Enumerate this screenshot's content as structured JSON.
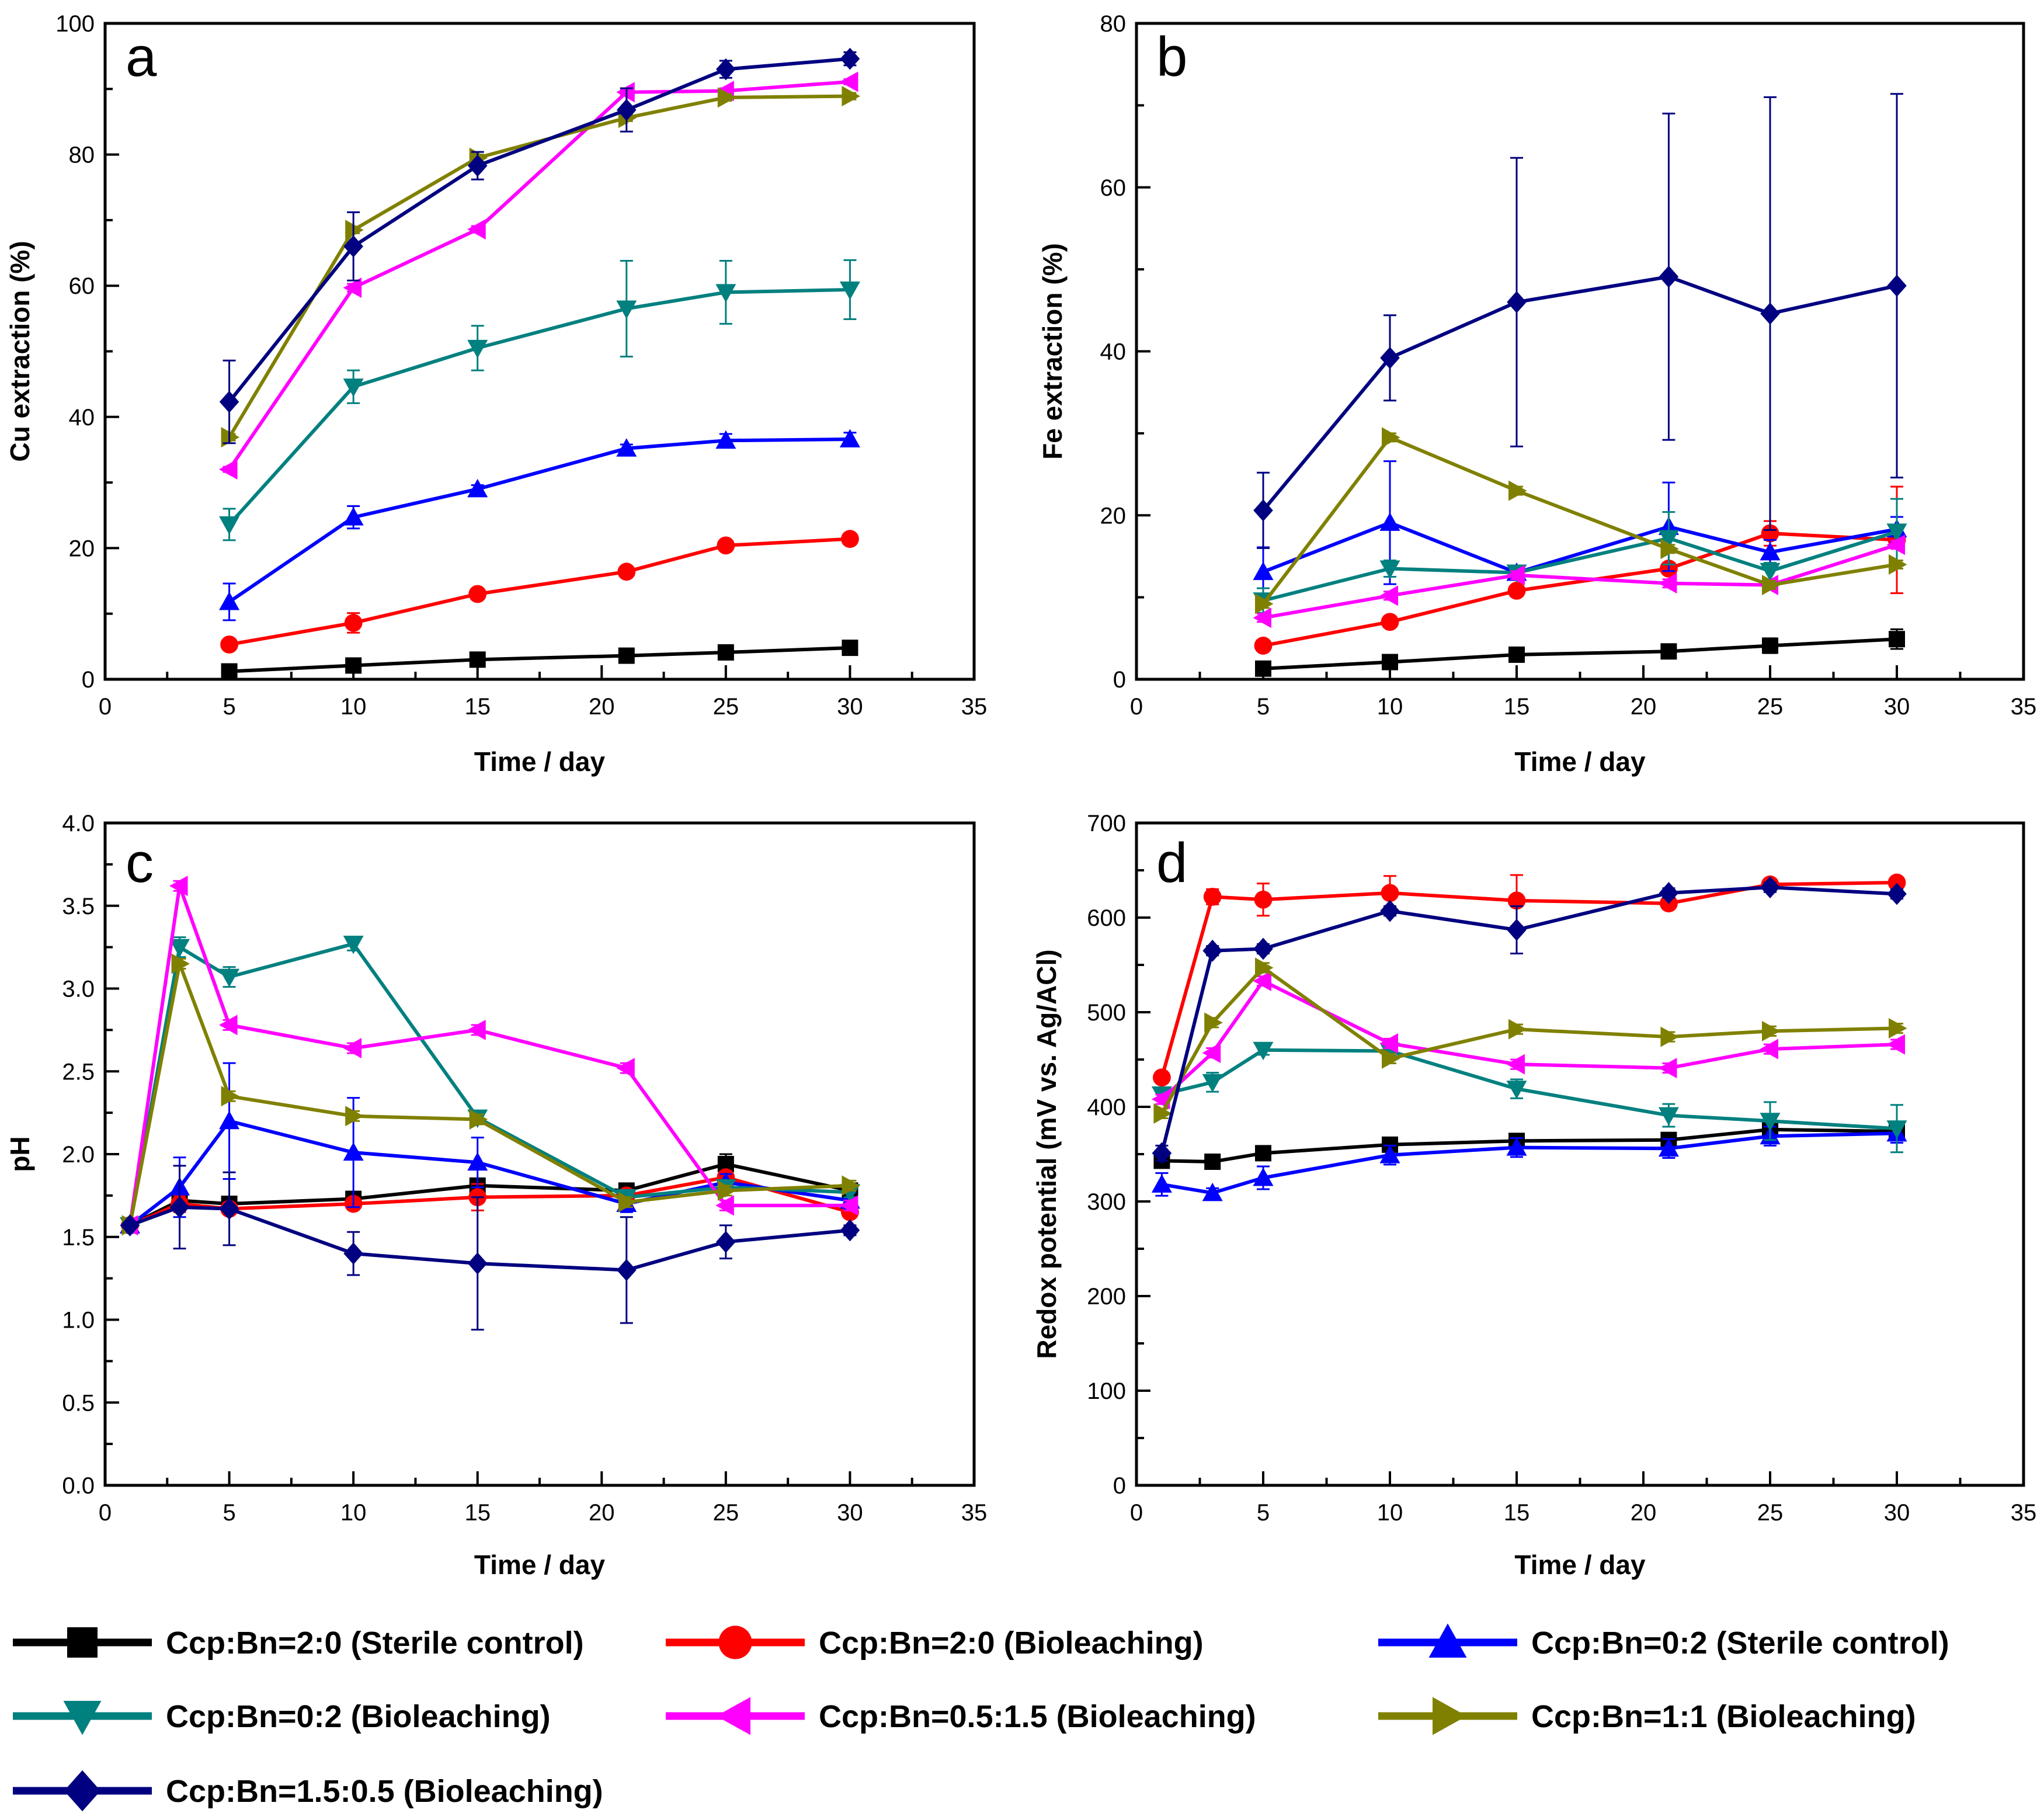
{
  "figure": {
    "legend": {
      "entries": [
        {
          "label": "Ccp:Bn=2:0 (Sterile control)",
          "color": "#000000",
          "marker": "square"
        },
        {
          "label": "Ccp:Bn=2:0 (Bioleaching)",
          "color": "#ff0000",
          "marker": "circle"
        },
        {
          "label": "Ccp:Bn=0:2 (Sterile control)",
          "color": "#0000ff",
          "marker": "triangle-up"
        },
        {
          "label": "Ccp:Bn=0:2 (Bioleaching)",
          "color": "#00807f",
          "marker": "triangle-down"
        },
        {
          "label": "Ccp:Bn=0.5:1.5 (Bioleaching)",
          "color": "#ff00ff",
          "marker": "triangle-left"
        },
        {
          "label": "Ccp:Bn=1:1 (Bioleaching)",
          "color": "#808000",
          "marker": "triangle-right"
        },
        {
          "label": "Ccp:Bn=1.5:0.5 (Bioleaching)",
          "color": "#000080",
          "marker": "diamond"
        }
      ]
    }
  },
  "chart_data": [
    {
      "panel": "a",
      "type": "line",
      "xlabel": "Time / day",
      "ylabel": "Cu extraction (%)",
      "xlim": [
        0,
        35
      ],
      "ylim": [
        0,
        100
      ],
      "xticks": [
        0,
        5,
        10,
        15,
        20,
        25,
        30,
        35
      ],
      "yticks": [
        0,
        20,
        40,
        60,
        80,
        100
      ],
      "series": [
        {
          "name": "Ccp:Bn=2:0 (Sterile control)",
          "x": [
            5,
            10,
            15,
            21,
            25,
            30
          ],
          "y": [
            1.2,
            2.1,
            3.0,
            3.6,
            4.1,
            4.8
          ],
          "err": [
            0.3,
            0.3,
            0.3,
            0.3,
            0.3,
            0.3
          ]
        },
        {
          "name": "Ccp:Bn=2:0 (Bioleaching)",
          "x": [
            5,
            10,
            15,
            21,
            25,
            30
          ],
          "y": [
            5.3,
            8.6,
            13.0,
            16.4,
            20.4,
            21.4
          ],
          "err": [
            0.5,
            1.5,
            0.5,
            0.5,
            0.5,
            0.5
          ]
        },
        {
          "name": "Ccp:Bn=0:2 (Sterile control)",
          "x": [
            5,
            10,
            15,
            21,
            25,
            30
          ],
          "y": [
            11.8,
            24.7,
            29.0,
            35.2,
            36.4,
            36.6
          ],
          "err": [
            2.8,
            1.7,
            0.6,
            0.6,
            1.0,
            1.0
          ]
        },
        {
          "name": "Ccp:Bn=0:2 (Bioleaching)",
          "x": [
            5,
            10,
            15,
            21,
            25,
            30
          ],
          "y": [
            23.6,
            44.6,
            50.5,
            56.5,
            59.0,
            59.4
          ],
          "err": [
            2.4,
            2.5,
            3.4,
            7.3,
            4.8,
            4.5
          ]
        },
        {
          "name": "Ccp:Bn=0.5:1.5 (Bioleaching)",
          "x": [
            5,
            10,
            15,
            21,
            25,
            30
          ],
          "y": [
            32.0,
            59.7,
            68.6,
            89.5,
            89.7,
            91.1
          ],
          "err": [
            0.4,
            0.6,
            0.5,
            0.4,
            0.4,
            0.4
          ]
        },
        {
          "name": "Ccp:Bn=1:1 (Bioleaching)",
          "x": [
            5,
            10,
            15,
            21,
            25,
            30
          ],
          "y": [
            36.9,
            68.5,
            79.5,
            85.6,
            88.7,
            88.9
          ],
          "err": [
            0.5,
            0.5,
            0.5,
            0.5,
            0.5,
            0.5
          ]
        },
        {
          "name": "Ccp:Bn=1.5:0.5 (Bioleaching)",
          "x": [
            5,
            10,
            15,
            21,
            25,
            30
          ],
          "y": [
            42.3,
            66.0,
            78.3,
            86.8,
            93.0,
            94.6
          ],
          "err": [
            6.3,
            5.2,
            2.1,
            3.3,
            1.3,
            1.0
          ]
        }
      ]
    },
    {
      "panel": "b",
      "type": "line",
      "xlabel": "Time / day",
      "ylabel": "Fe extraction (%)",
      "xlim": [
        0,
        35
      ],
      "ylim": [
        0,
        80
      ],
      "xticks": [
        0,
        5,
        10,
        15,
        20,
        25,
        30,
        35
      ],
      "yticks": [
        0,
        20,
        40,
        60,
        80
      ],
      "series": [
        {
          "name": "Ccp:Bn=2:0 (Sterile control)",
          "x": [
            5,
            10,
            15,
            21,
            25,
            30
          ],
          "y": [
            1.3,
            2.1,
            3.0,
            3.4,
            4.1,
            4.9
          ],
          "err": [
            0.3,
            0.3,
            0.3,
            0.4,
            0.9,
            1.2
          ]
        },
        {
          "name": "Ccp:Bn=2:0 (Bioleaching)",
          "x": [
            5,
            10,
            15,
            21,
            25,
            30
          ],
          "y": [
            4.1,
            7.0,
            10.8,
            13.5,
            17.8,
            17.0
          ],
          "err": [
            0.3,
            0.4,
            0.4,
            0.4,
            1.5,
            6.5
          ]
        },
        {
          "name": "Ccp:Bn=0:2 (Sterile control)",
          "x": [
            5,
            10,
            15,
            21,
            25,
            30
          ],
          "y": [
            13.1,
            19.1,
            13.0,
            18.6,
            15.5,
            18.3
          ],
          "err": [
            3.0,
            7.5,
            0.5,
            5.4,
            1.5,
            1.5
          ]
        },
        {
          "name": "Ccp:Bn=0:2 (Bioleaching)",
          "x": [
            5,
            10,
            15,
            21,
            25,
            30
          ],
          "y": [
            9.6,
            13.5,
            13.0,
            17.2,
            13.2,
            18.0
          ],
          "err": [
            1.5,
            1.0,
            0.5,
            3.2,
            1.0,
            4.0
          ]
        },
        {
          "name": "Ccp:Bn=0.5:1.5 (Bioleaching)",
          "x": [
            5,
            10,
            15,
            21,
            25,
            30
          ],
          "y": [
            7.5,
            10.2,
            12.7,
            11.7,
            11.5,
            16.4
          ],
          "err": [
            0.5,
            0.5,
            0.5,
            0.5,
            0.5,
            0.5
          ]
        },
        {
          "name": "Ccp:Bn=1:1 (Bioleaching)",
          "x": [
            5,
            10,
            15,
            21,
            25,
            30
          ],
          "y": [
            9.2,
            29.5,
            23.0,
            15.9,
            11.5,
            14.0
          ],
          "err": [
            0.5,
            0.5,
            0.5,
            0.5,
            0.5,
            0.5
          ]
        },
        {
          "name": "Ccp:Bn=1.5:0.5 (Bioleaching)",
          "x": [
            5,
            10,
            15,
            21,
            25,
            30
          ],
          "y": [
            20.6,
            39.2,
            46.0,
            49.1,
            44.6,
            48.0
          ],
          "err": [
            4.6,
            5.2,
            17.6,
            19.9,
            26.4,
            23.4
          ]
        }
      ]
    },
    {
      "panel": "c",
      "type": "line",
      "xlabel": "Time / day",
      "ylabel": "pH",
      "xlim": [
        0,
        35
      ],
      "ylim": [
        0,
        4
      ],
      "xticks": [
        0,
        5,
        10,
        15,
        20,
        25,
        30,
        35
      ],
      "yticks": [
        0.0,
        0.5,
        1.0,
        1.5,
        2.0,
        2.5,
        3.0,
        3.5,
        4.0
      ],
      "series": [
        {
          "name": "Ccp:Bn=2:0 (Sterile control)",
          "x": [
            1,
            3,
            5,
            10,
            15,
            21,
            25,
            30
          ],
          "y": [
            1.57,
            1.72,
            1.7,
            1.73,
            1.81,
            1.78,
            1.94,
            1.78
          ],
          "err": [
            0.02,
            0.03,
            0.03,
            0.03,
            0.03,
            0.03,
            0.06,
            0.03
          ]
        },
        {
          "name": "Ccp:Bn=2:0 (Bioleaching)",
          "x": [
            1,
            3,
            5,
            10,
            15,
            21,
            25,
            30
          ],
          "y": [
            1.57,
            1.7,
            1.67,
            1.7,
            1.74,
            1.75,
            1.86,
            1.65
          ],
          "err": [
            0.02,
            0.05,
            0.03,
            0.03,
            0.08,
            0.03,
            0.03,
            0.03
          ]
        },
        {
          "name": "Ccp:Bn=0:2 (Sterile control)",
          "x": [
            1,
            3,
            5,
            10,
            15,
            21,
            25,
            30
          ],
          "y": [
            1.57,
            1.8,
            2.2,
            2.01,
            1.95,
            1.7,
            1.83,
            1.72
          ],
          "err": [
            0.02,
            0.18,
            0.35,
            0.33,
            0.15,
            0.05,
            0.05,
            0.05
          ]
        },
        {
          "name": "Ccp:Bn=0:2 (Bioleaching)",
          "x": [
            1,
            3,
            5,
            10,
            15,
            21,
            25,
            30
          ],
          "y": [
            1.57,
            3.25,
            3.07,
            3.27,
            2.22,
            1.74,
            1.8,
            1.77
          ],
          "err": [
            0.02,
            0.06,
            0.06,
            0.04,
            0.03,
            0.03,
            0.03,
            0.03
          ]
        },
        {
          "name": "Ccp:Bn=0.5:1.5 (Bioleaching)",
          "x": [
            1,
            3,
            5,
            10,
            15,
            21,
            25,
            30
          ],
          "y": [
            1.57,
            3.62,
            2.78,
            2.64,
            2.75,
            2.52,
            1.69,
            1.69
          ],
          "err": [
            0.02,
            0.03,
            0.03,
            0.03,
            0.03,
            0.03,
            0.03,
            0.03
          ]
        },
        {
          "name": "Ccp:Bn=1:1 (Bioleaching)",
          "x": [
            1,
            3,
            5,
            10,
            15,
            21,
            25,
            30
          ],
          "y": [
            1.57,
            3.15,
            2.35,
            2.23,
            2.21,
            1.71,
            1.78,
            1.81
          ],
          "err": [
            0.02,
            0.03,
            0.03,
            0.03,
            0.03,
            0.03,
            0.03,
            0.03
          ]
        },
        {
          "name": "Ccp:Bn=1.5:0.5 (Bioleaching)",
          "x": [
            1,
            3,
            5,
            10,
            15,
            21,
            25,
            30
          ],
          "y": [
            1.57,
            1.68,
            1.67,
            1.4,
            1.34,
            1.3,
            1.47,
            1.54
          ],
          "err": [
            0.02,
            0.25,
            0.22,
            0.13,
            0.4,
            0.32,
            0.1,
            0.03
          ]
        }
      ]
    },
    {
      "panel": "d",
      "type": "line",
      "xlabel": "Time / day",
      "ylabel": "Redox potential (mV vs. Ag/ACl)",
      "xlim": [
        0,
        35
      ],
      "ylim": [
        0,
        700
      ],
      "xticks": [
        0,
        5,
        10,
        15,
        20,
        25,
        30,
        35
      ],
      "yticks": [
        0,
        100,
        200,
        300,
        400,
        500,
        600,
        700
      ],
      "series": [
        {
          "name": "Ccp:Bn=2:0 (Sterile control)",
          "x": [
            1,
            3,
            5,
            10,
            15,
            21,
            25,
            30
          ],
          "y": [
            343,
            342,
            351,
            360,
            364,
            365,
            376,
            374
          ],
          "err": [
            5,
            5,
            5,
            5,
            5,
            5,
            5,
            5
          ]
        },
        {
          "name": "Ccp:Bn=2:0 (Bioleaching)",
          "x": [
            1,
            3,
            5,
            10,
            15,
            21,
            25,
            30
          ],
          "y": [
            431,
            622,
            619,
            626,
            618,
            615,
            635,
            637
          ],
          "err": [
            5,
            8,
            17,
            18,
            27,
            5,
            5,
            5
          ]
        },
        {
          "name": "Ccp:Bn=0:2 (Sterile control)",
          "x": [
            1,
            3,
            5,
            10,
            15,
            21,
            25,
            30
          ],
          "y": [
            318,
            309,
            325,
            349,
            357,
            356,
            369,
            372
          ],
          "err": [
            12,
            5,
            12,
            10,
            10,
            10,
            10,
            10
          ]
        },
        {
          "name": "Ccp:Bn=0:2 (Bioleaching)",
          "x": [
            1,
            3,
            5,
            10,
            15,
            21,
            25,
            30
          ],
          "y": [
            413,
            426,
            460,
            459,
            419,
            391,
            385,
            377
          ],
          "err": [
            5,
            10,
            5,
            5,
            10,
            12,
            20,
            25
          ]
        },
        {
          "name": "Ccp:Bn=0.5:1.5 (Bioleaching)",
          "x": [
            1,
            3,
            5,
            10,
            15,
            21,
            25,
            30
          ],
          "y": [
            408,
            457,
            533,
            467,
            445,
            441,
            461,
            466
          ],
          "err": [
            5,
            5,
            5,
            5,
            5,
            5,
            5,
            5
          ]
        },
        {
          "name": "Ccp:Bn=1:1 (Bioleaching)",
          "x": [
            1,
            3,
            5,
            10,
            15,
            21,
            25,
            30
          ],
          "y": [
            393,
            489,
            547,
            451,
            482,
            474,
            480,
            483
          ],
          "err": [
            5,
            5,
            5,
            5,
            5,
            5,
            5,
            5
          ]
        },
        {
          "name": "Ccp:Bn=1.5:0.5 (Bioleaching)",
          "x": [
            1,
            3,
            5,
            10,
            15,
            21,
            25,
            30
          ],
          "y": [
            351,
            565,
            567,
            607,
            587,
            626,
            632,
            625
          ],
          "err": [
            8,
            5,
            5,
            5,
            25,
            5,
            5,
            5
          ]
        }
      ]
    }
  ]
}
